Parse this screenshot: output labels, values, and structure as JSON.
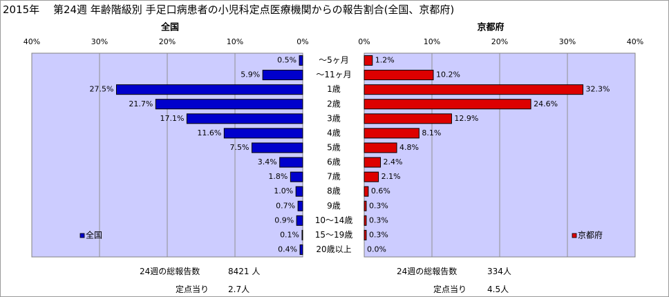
{
  "title": "2015年　 第24週 年齢階級別 手足口病患者の小児科定点医療機関からの報告割合(全国、京都府)",
  "colors": {
    "national_bar": "#0000cc",
    "kyoto_bar": "#dd0000",
    "plot_bg": "#ccccff",
    "grid": "#8f8f8f"
  },
  "chart_data": [
    {
      "type": "bar",
      "orientation": "horizontal",
      "direction": "right-to-left",
      "title": "全国",
      "legend": "全国",
      "legend_position": "bottom-left",
      "xlim": [
        0,
        40
      ],
      "ticks": [
        "0%",
        "10%",
        "20%",
        "30%",
        "40%"
      ],
      "grid": true,
      "categories": [
        "～5ヶ月",
        "～11ヶ月",
        "1歳",
        "2歳",
        "3歳",
        "4歳",
        "5歳",
        "6歳",
        "7歳",
        "8歳",
        "9歳",
        "10～14歳",
        "15～19歳",
        "20歳以上"
      ],
      "values": [
        0.5,
        5.9,
        27.5,
        21.7,
        17.1,
        11.6,
        7.5,
        3.4,
        1.8,
        1.0,
        0.7,
        0.9,
        0.1,
        0.4
      ],
      "data_labels": [
        "0.5%",
        "5.9%",
        "27.5%",
        "21.7%",
        "17.1%",
        "11.6%",
        "7.5%",
        "3.4%",
        "1.8%",
        "1.0%",
        "0.7%",
        "0.9%",
        "0.1%",
        "0.4%"
      ]
    },
    {
      "type": "bar",
      "orientation": "horizontal",
      "direction": "left-to-right",
      "title": "京都府",
      "legend": "京都府",
      "legend_position": "bottom-right",
      "xlim": [
        0,
        40
      ],
      "ticks": [
        "0%",
        "10%",
        "20%",
        "30%",
        "40%"
      ],
      "grid": true,
      "categories": [
        "～5ヶ月",
        "～11ヶ月",
        "1歳",
        "2歳",
        "3歳",
        "4歳",
        "5歳",
        "6歳",
        "7歳",
        "8歳",
        "9歳",
        "10～14歳",
        "15～19歳",
        "20歳以上"
      ],
      "values": [
        1.2,
        10.2,
        32.3,
        24.6,
        12.9,
        8.1,
        4.8,
        2.4,
        2.1,
        0.6,
        0.3,
        0.3,
        0.3,
        0.0
      ],
      "data_labels": [
        "1.2%",
        "10.2%",
        "32.3%",
        "24.6%",
        "12.9%",
        "8.1%",
        "4.8%",
        "2.4%",
        "2.1%",
        "0.6%",
        "0.3%",
        "0.3%",
        "0.3%",
        "0.0%"
      ]
    }
  ],
  "stats": {
    "national": {
      "total_label": "24週の総報告数",
      "total_value": "8421 人",
      "per_site_label": "定点当り",
      "per_site_value": "2.7人"
    },
    "kyoto": {
      "total_label": "24週の総報告数",
      "total_value": "334人",
      "per_site_label": "定点当り",
      "per_site_value": "4.5人"
    }
  }
}
